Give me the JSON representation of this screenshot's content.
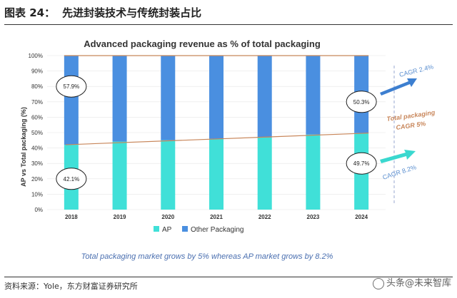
{
  "figure": {
    "label": "图表 24：",
    "title": "先进封装技术与传统封装占比",
    "source": "资料来源：Yole，东方财富证券研究所",
    "watermark": "头条@未来智库"
  },
  "chart_data": {
    "type": "bar",
    "stacked": true,
    "title": "Advanced packaging revenue as % of total packaging",
    "ylabel": "AP vs Total packaging (%)",
    "xlabel": "",
    "categories": [
      "2018",
      "2019",
      "2020",
      "2021",
      "2022",
      "2023",
      "2024"
    ],
    "ylim": [
      0,
      100
    ],
    "yticks": [
      "0%",
      "10%",
      "20%",
      "30%",
      "40%",
      "50%",
      "60%",
      "70%",
      "80%",
      "90%",
      "100%"
    ],
    "series": [
      {
        "name": "AP",
        "color": "#40e0d8",
        "values": [
          42.1,
          44.2,
          45.1,
          46.0,
          46.8,
          48.8,
          49.7
        ]
      },
      {
        "name": "Other Packaging",
        "color": "#4a8fe0",
        "values": [
          57.9,
          55.8,
          54.9,
          54.0,
          53.2,
          51.2,
          50.3
        ]
      }
    ],
    "trend_line": {
      "color": "#c8865a",
      "values": [
        42.1,
        44.2,
        45.1,
        46.0,
        46.8,
        48.8,
        49.7
      ]
    },
    "data_labels": {
      "ap_2018": "42.1%",
      "other_2018": "57.9%",
      "other_2024": "50.3%",
      "ap_2024": "49.7%"
    },
    "annotations": {
      "cagr_other": "CAGR 2.4%",
      "total_line1": "Total packaging",
      "total_line2": "CAGR 5%",
      "cagr_ap": "CAGR 8.2%",
      "note": "Total packaging market grows by 5% whereas AP market grows by 8.2%"
    },
    "legend": {
      "placement": "bottom-center",
      "ap": "AP",
      "other": "Other Packaging"
    },
    "colors": {
      "ap": "#40e0d8",
      "other": "#4a8fe0",
      "trend": "#c8865a",
      "annotation": "#5b8fd0",
      "total_annotation": "#c8865a",
      "arrow_other": "#3d7fd0",
      "arrow_ap": "#3ad8cf"
    }
  }
}
